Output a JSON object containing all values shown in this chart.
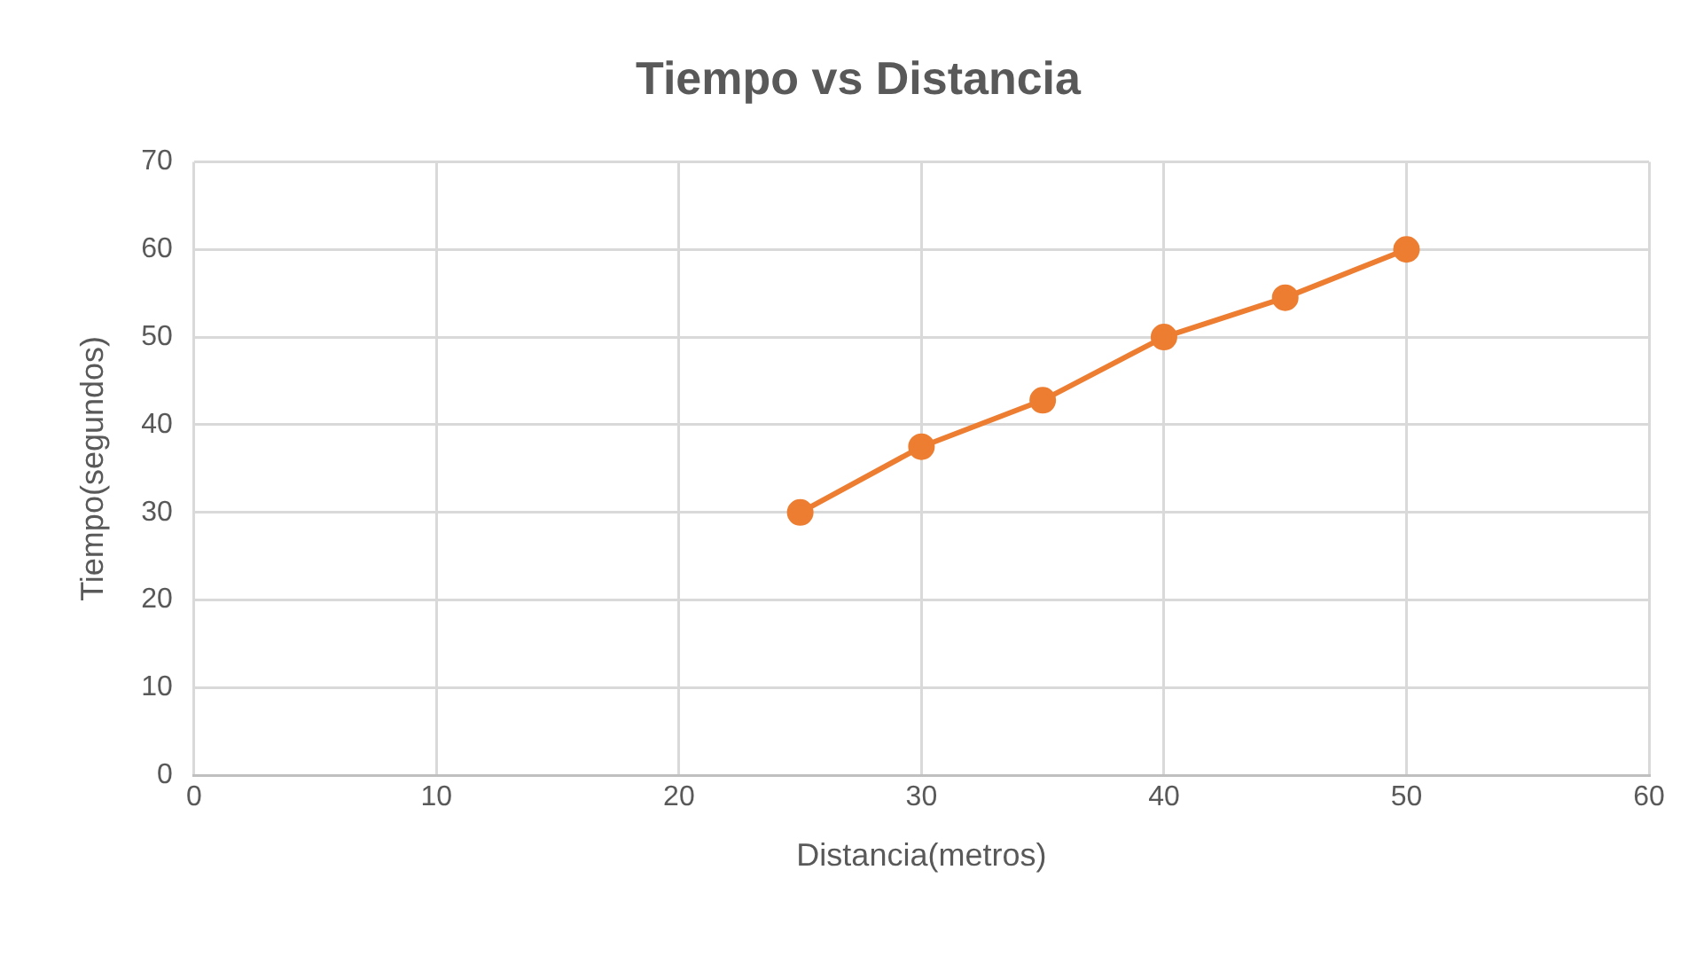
{
  "chart_data": {
    "type": "line",
    "title": "Tiempo vs Distancia",
    "xlabel": "Distancia(metros)",
    "ylabel": "Tiempo(segundos)",
    "x": [
      25,
      30,
      35,
      40,
      45,
      50
    ],
    "series": [
      {
        "color": "#ed7d31",
        "values": [
          30,
          37.5,
          42.8,
          50,
          54.5,
          60
        ]
      }
    ],
    "xlim": [
      0,
      60
    ],
    "xticks": [
      0,
      10,
      20,
      30,
      40,
      50,
      60
    ],
    "ylim": [
      0,
      70
    ],
    "yticks": [
      0,
      10,
      20,
      30,
      40,
      50,
      60,
      70
    ],
    "grid": true,
    "legend": false,
    "marker": "circle",
    "line_style": "solid"
  }
}
